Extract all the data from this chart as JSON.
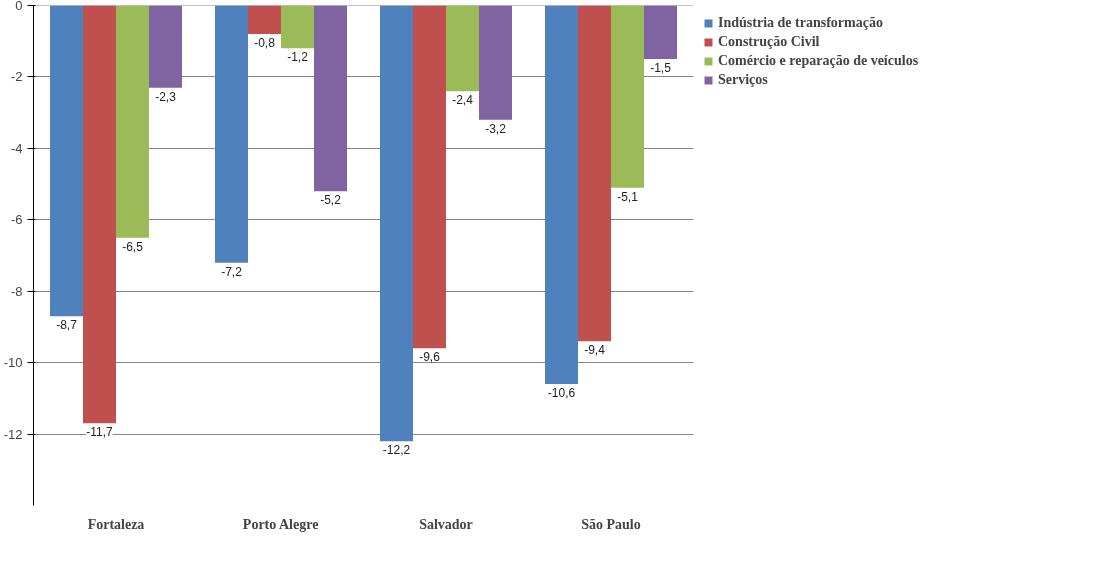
{
  "chart_data": {
    "type": "bar",
    "categories": [
      "Fortaleza",
      "Porto Alegre",
      "Salvador",
      "São Paulo"
    ],
    "series": [
      {
        "name": "Indústria de transformação",
        "color": "#4f81bd",
        "values": [
          -8.7,
          -7.2,
          -12.2,
          -10.6
        ],
        "value_labels": [
          "-8,7",
          "-7,2",
          "-12,2",
          "-10,6"
        ]
      },
      {
        "name": "Construção Civil",
        "color": "#c0504d",
        "values": [
          -11.7,
          -0.8,
          -9.6,
          -9.4
        ],
        "value_labels": [
          "-11,7",
          "-0,8",
          "-9,6",
          "-9,4"
        ]
      },
      {
        "name": "Comércio e reparação de veículos",
        "color": "#9bbb59",
        "values": [
          -6.5,
          -1.2,
          -2.4,
          -5.1
        ],
        "value_labels": [
          "-6,5",
          "-1,2",
          "-2,4",
          "-5,1"
        ]
      },
      {
        "name": "Serviços",
        "color": "#8064a2",
        "values": [
          -2.3,
          -5.2,
          -3.2,
          -1.5
        ],
        "value_labels": [
          "-2,3",
          "-5,2",
          "-3,2",
          "-1,5"
        ]
      }
    ],
    "ylim": [
      -14,
      0
    ],
    "yticks": [
      0,
      -2,
      -4,
      -6,
      -8,
      -10,
      -12
    ],
    "grid": "y",
    "legend": "right"
  }
}
